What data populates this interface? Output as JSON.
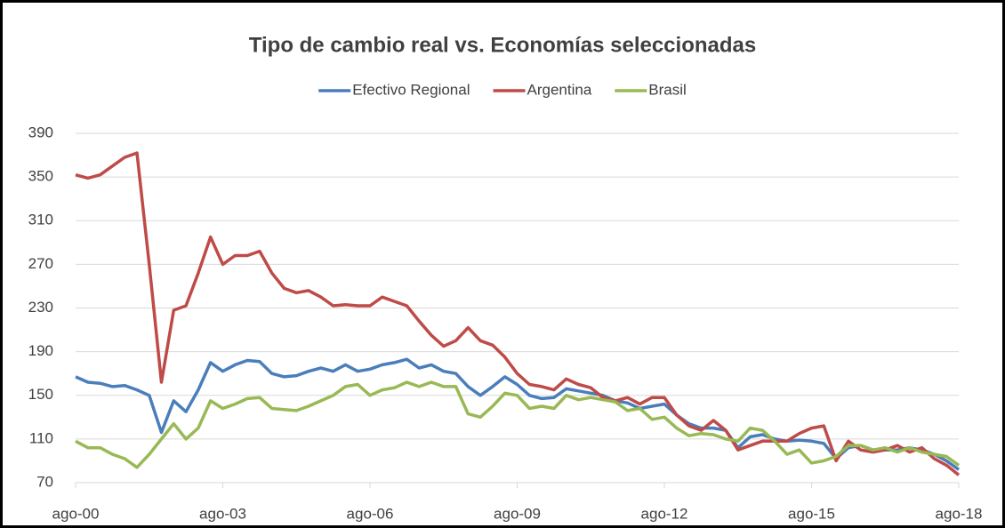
{
  "chart_data": {
    "type": "line",
    "title": "Tipo de cambio real vs. Economías seleccionadas",
    "categories": [
      "ago-00",
      null,
      null,
      null,
      null,
      null,
      null,
      null,
      null,
      null,
      null,
      null,
      "ago-03",
      null,
      null,
      null,
      null,
      null,
      null,
      null,
      null,
      null,
      null,
      null,
      "ago-06",
      null,
      null,
      null,
      null,
      null,
      null,
      null,
      null,
      null,
      null,
      null,
      "ago-09",
      null,
      null,
      null,
      null,
      null,
      null,
      null,
      null,
      null,
      null,
      null,
      "ago-12",
      null,
      null,
      null,
      null,
      null,
      null,
      null,
      null,
      null,
      null,
      null,
      "ago-15",
      null,
      null,
      null,
      null,
      null,
      null,
      null,
      null,
      null,
      null,
      null,
      "ago-18"
    ],
    "series": [
      {
        "name": "Efectivo Regional",
        "color": "#4a7ebb",
        "values": [
          167,
          162,
          161,
          158,
          159,
          155,
          150,
          116,
          145,
          135,
          155,
          180,
          172,
          178,
          182,
          181,
          170,
          167,
          168,
          172,
          175,
          172,
          178,
          172,
          174,
          178,
          180,
          183,
          175,
          178,
          172,
          170,
          158,
          150,
          158,
          167,
          160,
          150,
          147,
          148,
          156,
          154,
          152,
          150,
          145,
          143,
          138,
          140,
          142,
          132,
          124,
          120,
          120,
          118,
          102,
          112,
          114,
          110,
          108,
          109,
          108,
          106,
          92,
          102,
          104,
          100,
          100,
          100,
          102,
          100,
          96,
          90,
          82
        ]
      },
      {
        "name": "Argentina",
        "color": "#be4b48",
        "values": [
          352,
          349,
          352,
          360,
          368,
          372,
          270,
          162,
          228,
          232,
          262,
          295,
          270,
          278,
          278,
          282,
          262,
          248,
          244,
          246,
          240,
          232,
          233,
          232,
          232,
          240,
          236,
          232,
          218,
          205,
          195,
          200,
          212,
          200,
          196,
          185,
          170,
          160,
          158,
          155,
          165,
          160,
          157,
          148,
          145,
          148,
          142,
          148,
          148,
          132,
          122,
          118,
          127,
          118,
          100,
          104,
          108,
          108,
          108,
          115,
          120,
          122,
          90,
          108,
          100,
          98,
          100,
          104,
          98,
          102,
          92,
          86,
          77
        ]
      },
      {
        "name": "Brasil",
        "color": "#98b954",
        "values": [
          108,
          102,
          102,
          96,
          92,
          84,
          96,
          110,
          124,
          110,
          120,
          145,
          138,
          142,
          147,
          148,
          138,
          137,
          136,
          140,
          145,
          150,
          158,
          160,
          150,
          155,
          157,
          162,
          158,
          162,
          158,
          158,
          133,
          130,
          140,
          152,
          150,
          138,
          140,
          138,
          150,
          146,
          148,
          146,
          144,
          136,
          138,
          128,
          130,
          120,
          113,
          115,
          114,
          110,
          108,
          120,
          118,
          108,
          96,
          100,
          88,
          90,
          94,
          104,
          104,
          100,
          102,
          98,
          102,
          98,
          96,
          94,
          86
        ]
      }
    ],
    "ylim": [
      70,
      390
    ],
    "yticks": [
      70,
      110,
      150,
      190,
      230,
      270,
      310,
      350,
      390
    ],
    "grid": true,
    "legend": "top"
  }
}
